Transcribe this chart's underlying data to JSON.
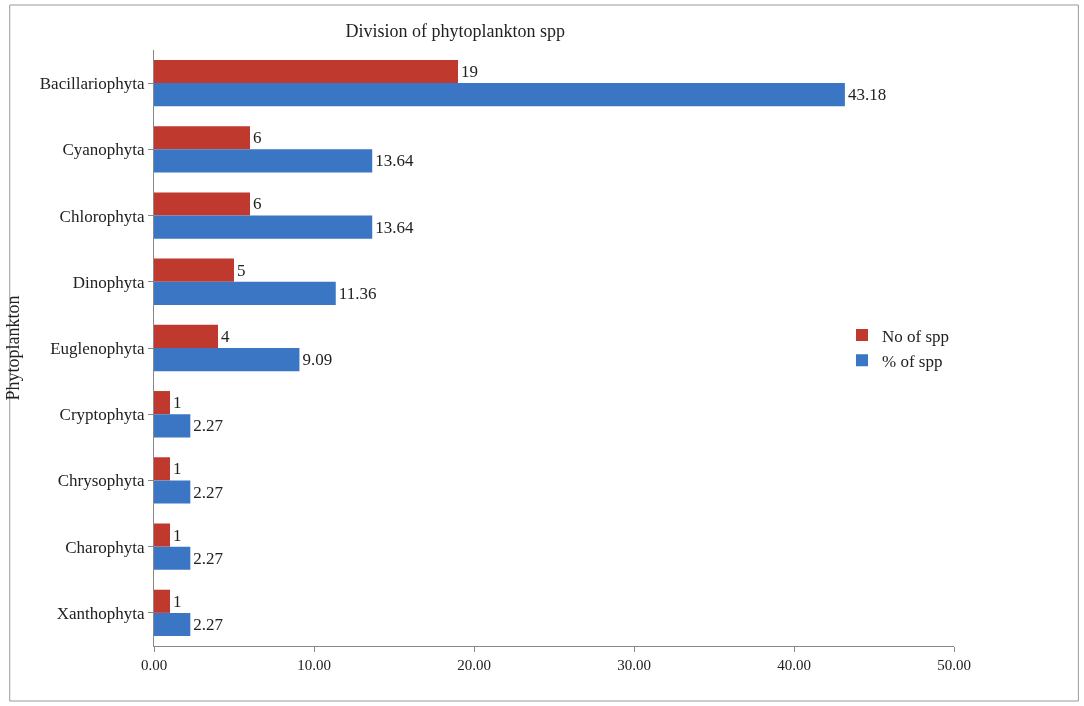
{
  "chart_data": {
    "type": "bar",
    "orientation": "horizontal",
    "title": "Division of phytoplankton spp",
    "ylabel": "Phytoplankton",
    "categories": [
      "Bacillariophyta",
      "Cyanophyta",
      "Chlorophyta",
      "Dinophyta",
      "Euglenophyta",
      "Cryptophyta",
      "Chrysophyta",
      "Charophyta",
      "Xanthophyta"
    ],
    "series": [
      {
        "name": "No of spp",
        "color": "#c0392f",
        "values": [
          19,
          6,
          6,
          5,
          4,
          1,
          1,
          1,
          1
        ]
      },
      {
        "name": "% of spp",
        "color": "#3a76c4",
        "values": [
          43.18,
          13.64,
          13.64,
          11.36,
          9.09,
          2.27,
          2.27,
          2.27,
          2.27
        ]
      }
    ],
    "xlim": [
      0,
      50
    ],
    "xticks": [
      {
        "value": 0,
        "label": "0.00"
      },
      {
        "value": 10,
        "label": "10.00"
      },
      {
        "value": 20,
        "label": "20.00"
      },
      {
        "value": 30,
        "label": "30.00"
      },
      {
        "value": 40,
        "label": "40.00"
      },
      {
        "value": 50,
        "label": "50.00"
      }
    ],
    "data_labels": true,
    "legend": "right"
  }
}
